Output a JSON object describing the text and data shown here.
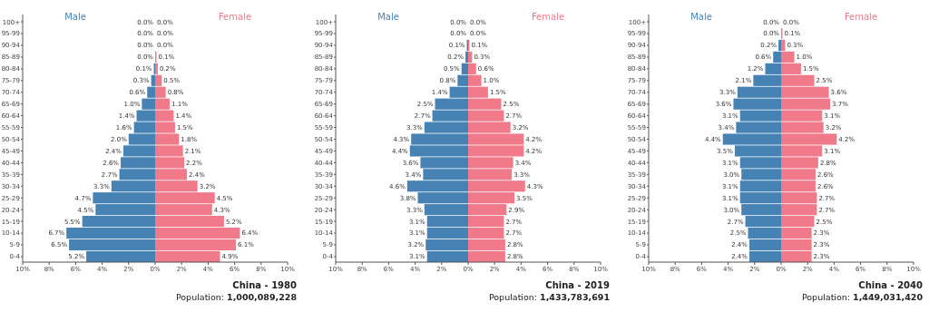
{
  "chart_data": [
    {
      "type": "bar",
      "orientation": "horizontal",
      "title": "China - 1980",
      "subtitle": "Population: 1,000,089,228",
      "categories": [
        "100+",
        "95-99",
        "90-94",
        "85-89",
        "80-84",
        "75-79",
        "70-74",
        "65-69",
        "60-64",
        "55-59",
        "50-54",
        "45-49",
        "40-44",
        "35-39",
        "30-34",
        "25-29",
        "20-24",
        "15-19",
        "10-14",
        "5-9",
        "0-4"
      ],
      "xlim": [
        -10,
        10
      ],
      "xticks": [
        {
          "value": -10,
          "label": "10%"
        },
        {
          "value": -8,
          "label": "8%"
        },
        {
          "value": -6,
          "label": "6%"
        },
        {
          "value": -4,
          "label": "4%"
        },
        {
          "value": -2,
          "label": "2%"
        },
        {
          "value": 0,
          "label": "0%"
        },
        {
          "value": 2,
          "label": "2%"
        },
        {
          "value": 4,
          "label": "4%"
        },
        {
          "value": 6,
          "label": "6%"
        },
        {
          "value": 8,
          "label": "8%"
        },
        {
          "value": 10,
          "label": "10%"
        }
      ],
      "legend": "top",
      "series": [
        {
          "name": "Male",
          "color": "#4682b4",
          "values": [
            0,
            0,
            0,
            0,
            0.1,
            0.3,
            0.6,
            1.0,
            1.4,
            1.6,
            2.0,
            2.4,
            2.6,
            2.7,
            3.3,
            4.7,
            4.5,
            5.5,
            6.7,
            6.5,
            5.2
          ],
          "base": [
            null,
            null,
            null,
            null,
            -0.1,
            -0.3,
            -0.6,
            -1.0,
            -1.4,
            -1.6,
            -2.0,
            -2.4,
            -2.6,
            -2.7,
            -3.3,
            -4.7,
            -4.5,
            -5.5,
            -6.7,
            -6.5,
            -5.2
          ],
          "value_labels": [
            "0.0%",
            "0.0%",
            "0.0%",
            "0.0%",
            "0.1%",
            "0.3%",
            "0.6%",
            "1.0%",
            "1.4%",
            "1.6%",
            "2.0%",
            "2.4%",
            "2.6%",
            "2.7%",
            "3.3%",
            "4.7%",
            "4.5%",
            "5.5%",
            "6.7%",
            "6.5%",
            "5.2%"
          ]
        },
        {
          "name": "Female",
          "color": "#f07a8a",
          "values": [
            0,
            0,
            0,
            0.1,
            0.2,
            0.5,
            0.8,
            1.1,
            1.4,
            1.5,
            1.8,
            2.1,
            2.2,
            2.4,
            3.2,
            4.5,
            4.3,
            5.2,
            6.4,
            6.1,
            4.9
          ],
          "value_labels": [
            "0.0%",
            "0.0%",
            "0.0%",
            "0.1%",
            "0.2%",
            "0.5%",
            "0.8%",
            "1.1%",
            "1.4%",
            "1.5%",
            "1.8%",
            "2.1%",
            "2.2%",
            "2.4%",
            "3.2%",
            "4.5%",
            "4.3%",
            "5.2%",
            "6.4%",
            "6.1%",
            "4.9%"
          ]
        }
      ]
    },
    {
      "type": "bar",
      "orientation": "horizontal",
      "title": "China - 2019",
      "subtitle": "Population: 1,433,783,691",
      "categories": [
        "100+",
        "95-99",
        "90-94",
        "85-89",
        "80-84",
        "75-79",
        "70-74",
        "65-69",
        "60-64",
        "55-59",
        "50-54",
        "45-49",
        "40-44",
        "35-39",
        "30-34",
        "25-29",
        "20-24",
        "15-19",
        "10-14",
        "5-9",
        "0-4"
      ],
      "xlim": [
        -10,
        10
      ],
      "xticks": [
        {
          "value": -10,
          "label": "10%"
        },
        {
          "value": -8,
          "label": "8%"
        },
        {
          "value": -6,
          "label": "6%"
        },
        {
          "value": -4,
          "label": "4%"
        },
        {
          "value": -2,
          "label": "2%"
        },
        {
          "value": 0,
          "label": "0%"
        },
        {
          "value": 2,
          "label": "2%"
        },
        {
          "value": 4,
          "label": "4%"
        },
        {
          "value": 6,
          "label": "6%"
        },
        {
          "value": 8,
          "label": "8%"
        },
        {
          "value": 10,
          "label": "10%"
        }
      ],
      "legend": "top",
      "series": [
        {
          "name": "Male",
          "color": "#4682b4",
          "values": [
            0,
            0,
            0.1,
            0.2,
            0.5,
            0.8,
            1.4,
            2.5,
            2.7,
            3.3,
            4.3,
            4.4,
            3.6,
            3.4,
            4.6,
            3.8,
            3.3,
            3.1,
            3.1,
            3.2,
            3.1
          ],
          "base": [
            null,
            null,
            -0.1,
            -0.2,
            -0.5,
            -0.8,
            -1.4,
            -2.5,
            -2.7,
            -3.3,
            -4.3,
            -4.4,
            -3.6,
            -3.4,
            -4.6,
            -3.8,
            -3.3,
            -3.1,
            -3.1,
            -3.2,
            -3.1
          ],
          "value_labels": [
            "0.0%",
            "0.0%",
            "0.1%",
            "0.2%",
            "0.5%",
            "0.8%",
            "1.4%",
            "2.5%",
            "2.7%",
            "3.3%",
            "4.3%",
            "4.4%",
            "3.6%",
            "3.4%",
            "4.6%",
            "3.8%",
            "3.3%",
            "3.1%",
            "3.1%",
            "3.2%",
            "3.1%"
          ]
        },
        {
          "name": "Female",
          "color": "#f07a8a",
          "values": [
            0,
            0,
            0.1,
            0.3,
            0.6,
            1.0,
            1.5,
            2.5,
            2.7,
            3.2,
            4.2,
            4.2,
            3.4,
            3.3,
            4.3,
            3.5,
            2.9,
            2.7,
            2.7,
            2.8,
            2.8
          ],
          "value_labels": [
            "0.0%",
            "0.0%",
            "0.1%",
            "0.3%",
            "0.6%",
            "1.0%",
            "1.5%",
            "2.5%",
            "2.7%",
            "3.2%",
            "4.2%",
            "4.2%",
            "3.4%",
            "3.3%",
            "4.3%",
            "3.5%",
            "2.9%",
            "2.7%",
            "2.7%",
            "2.8%",
            "2.8%"
          ]
        }
      ]
    },
    {
      "type": "bar",
      "orientation": "horizontal",
      "title": "China - 2040",
      "subtitle": "Population: 1,449,031,420",
      "categories": [
        "100+",
        "95-99",
        "90-94",
        "85-89",
        "80-84",
        "75-79",
        "70-74",
        "65-69",
        "60-64",
        "55-59",
        "50-54",
        "45-49",
        "40-44",
        "35-39",
        "30-34",
        "25-29",
        "20-24",
        "15-19",
        "10-14",
        "5-9",
        "0-4"
      ],
      "xlim": [
        -10,
        10
      ],
      "xticks": [
        {
          "value": -10,
          "label": "10%"
        },
        {
          "value": -8,
          "label": "8%"
        },
        {
          "value": -6,
          "label": "6%"
        },
        {
          "value": -4,
          "label": "4%"
        },
        {
          "value": -2,
          "label": "2%"
        },
        {
          "value": 0,
          "label": "0%"
        },
        {
          "value": 2,
          "label": "2%"
        },
        {
          "value": 4,
          "label": "4%"
        },
        {
          "value": 6,
          "label": "6%"
        },
        {
          "value": 8,
          "label": "8%"
        },
        {
          "value": 10,
          "label": "10%"
        }
      ],
      "legend": "top",
      "series": [
        {
          "name": "Male",
          "color": "#4682b4",
          "values": [
            0,
            0,
            0.2,
            0.6,
            1.2,
            2.1,
            3.3,
            3.6,
            3.1,
            3.4,
            4.4,
            3.5,
            3.1,
            3.0,
            3.1,
            3.1,
            3.0,
            2.7,
            2.5,
            2.4,
            2.4
          ],
          "base": [
            null,
            null,
            -0.2,
            -0.6,
            -1.2,
            -2.1,
            -3.3,
            -3.6,
            -3.1,
            -3.4,
            -4.4,
            -3.5,
            -3.1,
            -3.0,
            -3.1,
            -3.1,
            -3.0,
            -2.7,
            -2.5,
            -2.4,
            -2.4
          ],
          "value_labels": [
            "0.0%",
            "0.0%",
            "0.2%",
            "0.6%",
            "1.2%",
            "2.1%",
            "3.3%",
            "3.6%",
            "3.1%",
            "3.4%",
            "4.4%",
            "3.5%",
            "3.1%",
            "3.0%",
            "3.1%",
            "3.1%",
            "3.0%",
            "2.7%",
            "2.5%",
            "2.4%",
            "2.4%"
          ]
        },
        {
          "name": "Female",
          "color": "#f07a8a",
          "values": [
            0,
            0.1,
            0.3,
            1.0,
            1.5,
            2.5,
            3.6,
            3.7,
            3.1,
            3.2,
            4.2,
            3.1,
            2.8,
            2.6,
            2.6,
            2.7,
            2.7,
            2.5,
            2.3,
            2.3,
            2.3
          ],
          "value_labels": [
            "0.0%",
            "0.1%",
            "0.3%",
            "1.0%",
            "1.5%",
            "2.5%",
            "3.6%",
            "3.7%",
            "3.1%",
            "3.2%",
            "4.2%",
            "3.1%",
            "2.8%",
            "2.6%",
            "2.6%",
            "2.7%",
            "2.7%",
            "2.5%",
            "2.3%",
            "2.3%",
            "2.3%"
          ]
        }
      ]
    }
  ]
}
